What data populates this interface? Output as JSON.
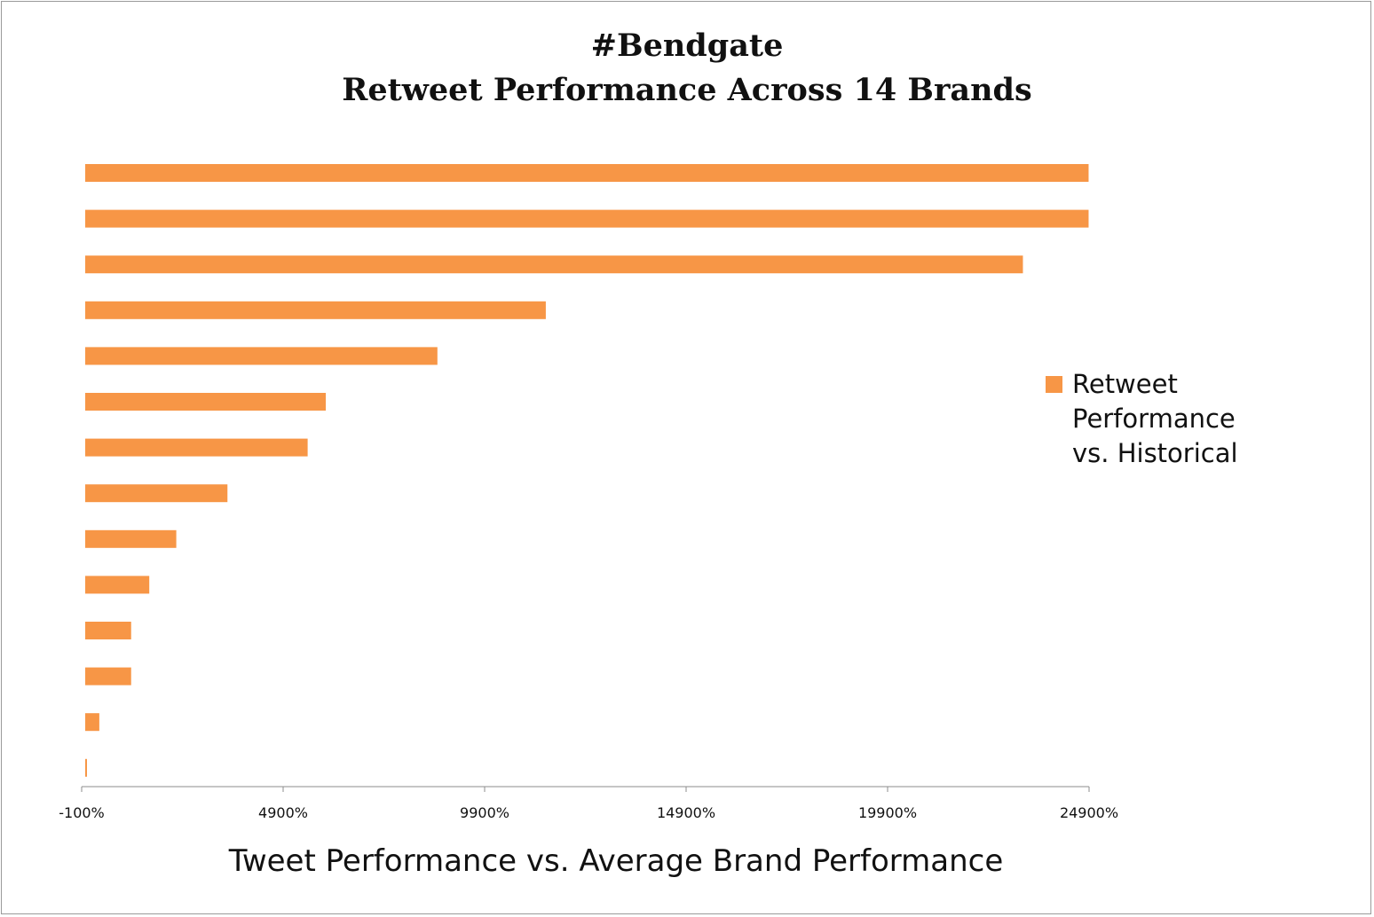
{
  "chart_data": {
    "type": "bar",
    "orientation": "horizontal",
    "title_line1": "#Bendgate",
    "title_line2": "Retweet Performance Across 14 Brands",
    "xlabel": "Tweet Performance vs. Average Brand Performance",
    "ylabel": "",
    "xlim": [
      -100,
      24900
    ],
    "x_ticks": [
      -100,
      4900,
      9900,
      14900,
      19900,
      24900
    ],
    "x_tick_labels": [
      "-100%",
      "4900%",
      "9900%",
      "14900%",
      "19900%",
      "24900%"
    ],
    "grid": false,
    "legend_position": "right",
    "series": [
      {
        "name": "Retweet Performance vs. Historical",
        "color": "#F79646",
        "values": [
          24900,
          24900,
          23270,
          11430,
          8740,
          5970,
          5520,
          3530,
          2260,
          1590,
          1140,
          1140,
          350,
          -50
        ]
      }
    ]
  }
}
